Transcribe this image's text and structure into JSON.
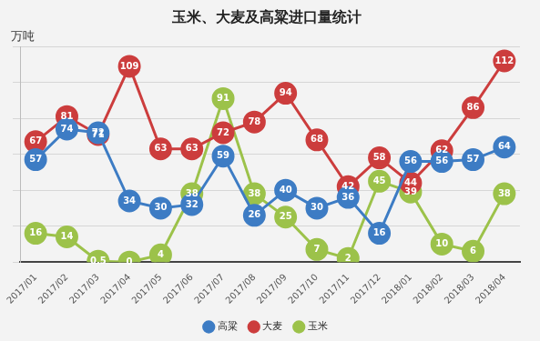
{
  "chart_data": {
    "type": "line",
    "title": "玉米、大麦及高粱进口量统计",
    "y_label": "万吨",
    "categories": [
      "2017/01",
      "2017/02",
      "2017/03",
      "2017/04",
      "2017/05",
      "2017/06",
      "2017/07",
      "2017/08",
      "2017/09",
      "2017/10",
      "2017/11",
      "2017/12",
      "2018/01",
      "2018/02",
      "2018/03",
      "2018/04"
    ],
    "series": [
      {
        "name": "高粱",
        "color": "#3d7cc4",
        "values": [
          57,
          74,
          72,
          34,
          30,
          32,
          59,
          26,
          40,
          30,
          36,
          16,
          56,
          56,
          57,
          64
        ]
      },
      {
        "name": "大麦",
        "color": "#cc3d3d",
        "values": [
          67,
          81,
          71,
          109,
          63,
          63,
          72,
          78,
          94,
          68,
          42,
          58,
          44,
          62,
          86,
          112
        ]
      },
      {
        "name": "玉米",
        "color": "#9cc24a",
        "values": [
          16,
          14,
          0.5,
          0,
          4,
          38,
          91,
          38,
          25,
          7,
          2,
          45,
          39,
          10,
          6,
          38
        ]
      }
    ],
    "ylim": [
      0,
      120
    ],
    "yticks": [
      0,
      20,
      40,
      60,
      80,
      100,
      120
    ],
    "grid": true,
    "legend": "bottom",
    "data_labels": true,
    "tick_labels": "x",
    "marker": "circle"
  }
}
